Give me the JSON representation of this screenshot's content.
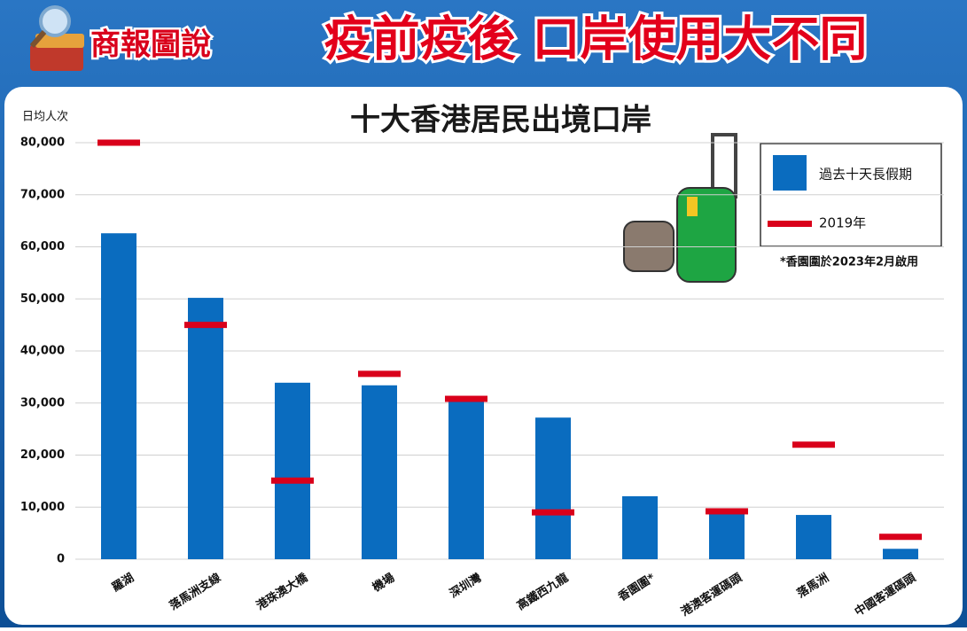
{
  "header": {
    "logo": "商報圖說",
    "title": "疫前疫後 口岸使用大不同"
  },
  "chart_data": {
    "type": "bar",
    "title": "十大香港居民出境口岸",
    "y_label": "日均人次",
    "categories": [
      "羅湖",
      "落馬洲支線",
      "港珠澳大橋",
      "機場",
      "深圳灣",
      "高鐵西九龍",
      "香園圍*",
      "港澳客運碼頭",
      "落馬洲",
      "中國客運碼頭"
    ],
    "series": [
      {
        "name": "過去十天長假期",
        "color": "#0a6cbf",
        "values": [
          62600,
          50200,
          33900,
          33400,
          30500,
          27200,
          12100,
          8800,
          8500,
          2000
        ]
      },
      {
        "name": "2019年",
        "color": "#d9001b",
        "values": [
          80000,
          45000,
          15100,
          35600,
          30800,
          9000,
          null,
          9200,
          22000,
          4300
        ]
      }
    ],
    "ylim": [
      0,
      80000
    ],
    "yticks": [
      0,
      {
        "value": 10000,
        "label": "10,000"
      },
      {
        "value": 20000,
        "label": "20,000"
      },
      {
        "value": 30000,
        "label": "30,000"
      },
      {
        "value": 40000,
        "label": "40,000"
      },
      {
        "value": 50000,
        "label": "50,000"
      },
      {
        "value": 60000,
        "label": "60,000"
      },
      {
        "value": 70000,
        "label": "70,000"
      },
      {
        "value": 80000,
        "label": "80,000"
      }
    ],
    "grid": true,
    "note": "*香園圍於2023年2月啟用"
  }
}
